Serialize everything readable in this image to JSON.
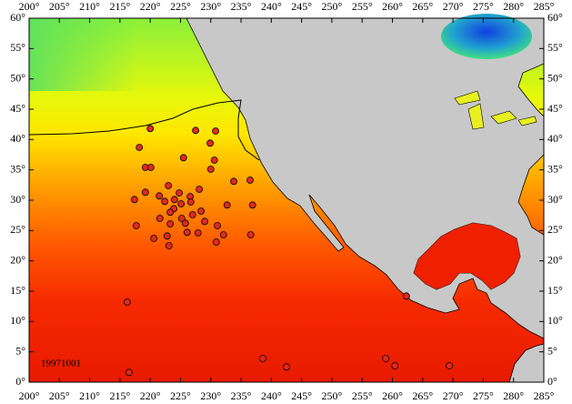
{
  "chart_data": {
    "type": "map",
    "date_label": "19971001",
    "xlim": [
      200,
      285
    ],
    "ylim": [
      0,
      60
    ],
    "xticks": [
      {
        "value": 200,
        "label": "200°"
      },
      {
        "value": 205,
        "label": "205°"
      },
      {
        "value": 210,
        "label": "210°"
      },
      {
        "value": 215,
        "label": "215°"
      },
      {
        "value": 220,
        "label": "220°"
      },
      {
        "value": 225,
        "label": "225°"
      },
      {
        "value": 230,
        "label": "230°"
      },
      {
        "value": 235,
        "label": "235°"
      },
      {
        "value": 240,
        "label": "240°"
      },
      {
        "value": 245,
        "label": "245°"
      },
      {
        "value": 250,
        "label": "250°"
      },
      {
        "value": 255,
        "label": "255°"
      },
      {
        "value": 260,
        "label": "260°"
      },
      {
        "value": 265,
        "label": "265°"
      },
      {
        "value": 270,
        "label": "270°"
      },
      {
        "value": 275,
        "label": "275°"
      },
      {
        "value": 280,
        "label": "280°"
      },
      {
        "value": 285,
        "label": "285°"
      }
    ],
    "yticks": [
      {
        "value": 0,
        "label": "0°"
      },
      {
        "value": 5,
        "label": "5°"
      },
      {
        "value": 10,
        "label": "10°"
      },
      {
        "value": 15,
        "label": "15°"
      },
      {
        "value": 20,
        "label": "20°"
      },
      {
        "value": 25,
        "label": "25°"
      },
      {
        "value": 30,
        "label": "30°"
      },
      {
        "value": 35,
        "label": "35°"
      },
      {
        "value": 40,
        "label": "40°"
      },
      {
        "value": 45,
        "label": "45°"
      },
      {
        "value": 50,
        "label": "50°"
      },
      {
        "value": 55,
        "label": "55°"
      },
      {
        "value": 60,
        "label": "60°"
      }
    ],
    "marker_color": "#e02a20",
    "x": [
      220.0,
      227.5,
      230.8,
      218.2,
      229.9,
      225.5,
      230.6,
      219.2,
      220.1,
      230.0,
      233.8,
      223.0,
      219.2,
      221.5,
      224.8,
      228.1,
      226.6,
      217.4,
      224.0,
      222.4,
      225.1,
      226.7,
      223.9,
      228.4,
      232.7,
      223.3,
      221.6,
      225.2,
      227.0,
      229.0,
      223.3,
      225.8,
      231.1,
      217.7,
      232.1,
      227.9,
      226.1,
      222.8,
      220.6,
      230.9,
      223.1,
      236.5,
      236.9,
      236.6,
      216.2,
      216.5,
      238.6,
      242.5,
      258.9,
      260.4,
      262.3,
      269.4
    ],
    "values": [
      41.8,
      41.5,
      41.4,
      38.7,
      39.4,
      37.0,
      36.6,
      35.4,
      35.4,
      35.1,
      33.1,
      32.4,
      31.3,
      30.7,
      31.2,
      31.8,
      30.6,
      30.1,
      30.1,
      29.8,
      29.4,
      29.7,
      28.6,
      28.2,
      29.2,
      28.0,
      27.0,
      27.0,
      27.6,
      26.5,
      26.1,
      26.2,
      25.8,
      25.8,
      24.3,
      24.6,
      24.7,
      24.1,
      23.7,
      23.1,
      22.5,
      33.3,
      29.2,
      24.3,
      13.2,
      1.6,
      3.9,
      2.5,
      3.9,
      2.7,
      14.2,
      2.7
    ]
  }
}
